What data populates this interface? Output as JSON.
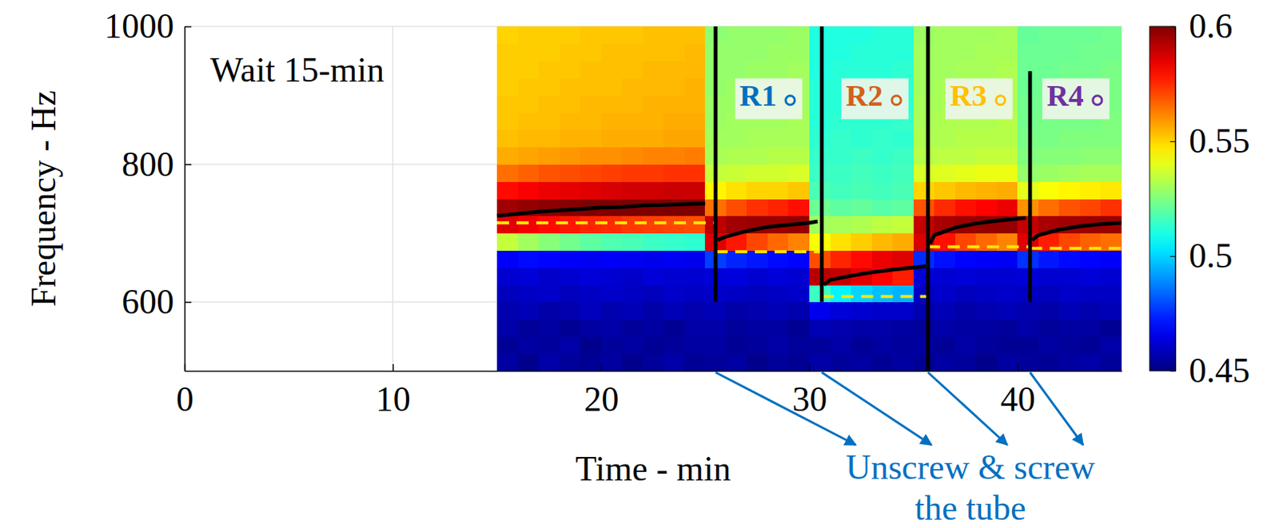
{
  "chart_data": {
    "type": "heatmap",
    "xlabel": "Time - min",
    "ylabel": "Frequency - Hz",
    "xlim": [
      0,
      45
    ],
    "ylim": [
      500,
      1000
    ],
    "xticks": [
      0,
      10,
      20,
      30,
      40
    ],
    "yticks": [
      600,
      800,
      1000
    ],
    "grid": true,
    "x": [
      15,
      16,
      17,
      18,
      19,
      20,
      21,
      22,
      23,
      24,
      25,
      25.5,
      25.6,
      26,
      27,
      28,
      29,
      30,
      30.4,
      30.6,
      30.7,
      31,
      32,
      33,
      34,
      35,
      35.6,
      35.7,
      35.8,
      36,
      37,
      38,
      39,
      40,
      40.4,
      40.6,
      40.7,
      41,
      42,
      43,
      44,
      45
    ],
    "series": [
      {
        "type": "line",
        "color": "#000000",
        "line_style": "solid",
        "values": [
          725,
          728,
          731,
          733,
          735,
          737,
          738,
          740,
          741,
          742,
          743,
          null,
          690,
          695,
          703,
          709,
          712,
          715,
          717,
          null,
          625,
          632,
          638,
          643,
          647,
          650,
          652,
          null,
          685,
          697,
          708,
          714,
          718,
          721,
          722,
          null,
          690,
          697,
          705,
          710,
          713,
          715
        ]
      }
    ],
    "cells": {
      "x": [
        15.5,
        16.5,
        17.5,
        18.5,
        19.5,
        20.5,
        21.5,
        22.5,
        23.5,
        24.5,
        25.5,
        26.5,
        27.5,
        28.5,
        29.5,
        30.5,
        31.5,
        32.5,
        33.5,
        34.5,
        35.5,
        36.5,
        37.5,
        38.5,
        39.5,
        40.5,
        41.5,
        42.5,
        43.5,
        44.5
      ],
      "y": [
        512.5,
        537.5,
        562.5,
        587.5,
        612.5,
        637.5,
        662.5,
        687.5,
        712.5,
        737.5,
        762.5,
        787.5,
        812.5,
        837.5,
        862.5,
        887.5,
        912.5,
        937.5,
        962.5,
        987.5
      ],
      "values": [
        [
          0.455,
          0.452,
          0.456,
          0.454,
          0.453,
          0.455,
          0.452,
          0.454,
          0.456,
          0.453,
          0.454,
          0.455,
          0.452,
          0.454,
          0.453,
          0.456,
          0.454,
          0.455,
          0.453,
          0.455,
          0.453,
          0.455,
          0.454,
          0.452,
          0.455,
          0.454,
          0.453,
          0.455,
          0.456,
          0.454
        ],
        [
          0.453,
          0.455,
          0.454,
          0.456,
          0.452,
          0.454,
          0.455,
          0.453,
          0.454,
          0.455,
          0.455,
          0.453,
          0.454,
          0.456,
          0.454,
          0.454,
          0.456,
          0.453,
          0.455,
          0.454,
          0.455,
          0.453,
          0.456,
          0.454,
          0.453,
          0.453,
          0.455,
          0.454,
          0.453,
          0.456
        ],
        [
          0.456,
          0.454,
          0.455,
          0.453,
          0.455,
          0.456,
          0.454,
          0.455,
          0.453,
          0.456,
          0.456,
          0.454,
          0.455,
          0.455,
          0.453,
          0.458,
          0.457,
          0.456,
          0.456,
          0.455,
          0.454,
          0.456,
          0.455,
          0.455,
          0.454,
          0.456,
          0.454,
          0.455,
          0.455,
          0.453
        ],
        [
          0.457,
          0.458,
          0.456,
          0.457,
          0.459,
          0.457,
          0.458,
          0.456,
          0.458,
          0.457,
          0.458,
          0.456,
          0.457,
          0.458,
          0.457,
          0.466,
          0.463,
          0.462,
          0.461,
          0.461,
          0.457,
          0.458,
          0.456,
          0.457,
          0.458,
          0.457,
          0.456,
          0.458,
          0.457,
          0.458
        ],
        [
          0.459,
          0.46,
          0.461,
          0.459,
          0.46,
          0.461,
          0.46,
          0.459,
          0.461,
          0.46,
          0.461,
          0.46,
          0.459,
          0.46,
          0.461,
          0.515,
          0.505,
          0.5,
          0.497,
          0.495,
          0.46,
          0.461,
          0.459,
          0.46,
          0.461,
          0.46,
          0.459,
          0.461,
          0.46,
          0.46
        ],
        [
          0.462,
          0.463,
          0.461,
          0.462,
          0.463,
          0.462,
          0.461,
          0.463,
          0.462,
          0.462,
          0.463,
          0.464,
          0.462,
          0.463,
          0.462,
          0.592,
          0.59,
          0.586,
          0.581,
          0.577,
          0.463,
          0.462,
          0.463,
          0.462,
          0.462,
          0.463,
          0.462,
          0.462,
          0.463,
          0.462
        ],
        [
          0.468,
          0.47,
          0.469,
          0.468,
          0.467,
          0.468,
          0.467,
          0.466,
          0.467,
          0.466,
          0.478,
          0.474,
          0.472,
          0.47,
          0.469,
          0.57,
          0.576,
          0.58,
          0.584,
          0.586,
          0.475,
          0.471,
          0.469,
          0.468,
          0.467,
          0.476,
          0.472,
          0.47,
          0.469,
          0.468
        ],
        [
          0.535,
          0.53,
          0.526,
          0.523,
          0.52,
          0.518,
          0.517,
          0.515,
          0.514,
          0.513,
          0.586,
          0.578,
          0.571,
          0.566,
          0.562,
          0.543,
          0.548,
          0.551,
          0.554,
          0.556,
          0.587,
          0.579,
          0.571,
          0.566,
          0.562,
          0.586,
          0.577,
          0.571,
          0.567,
          0.565
        ],
        [
          0.586,
          0.583,
          0.58,
          0.578,
          0.576,
          0.575,
          0.573,
          0.572,
          0.571,
          0.57,
          0.591,
          0.595,
          0.596,
          0.596,
          0.597,
          0.53,
          0.531,
          0.532,
          0.534,
          0.535,
          0.59,
          0.594,
          0.596,
          0.597,
          0.597,
          0.59,
          0.594,
          0.595,
          0.596,
          0.596
        ],
        [
          0.595,
          0.597,
          0.598,
          0.599,
          0.6,
          0.6,
          0.6,
          0.6,
          0.6,
          0.6,
          0.565,
          0.57,
          0.574,
          0.576,
          0.579,
          0.522,
          0.52,
          0.521,
          0.519,
          0.52,
          0.569,
          0.575,
          0.579,
          0.581,
          0.584,
          0.56,
          0.565,
          0.569,
          0.571,
          0.574
        ],
        [
          0.58,
          0.582,
          0.584,
          0.585,
          0.586,
          0.587,
          0.588,
          0.588,
          0.589,
          0.589,
          0.545,
          0.548,
          0.55,
          0.55,
          0.552,
          0.517,
          0.516,
          0.517,
          0.516,
          0.517,
          0.55,
          0.552,
          0.554,
          0.555,
          0.556,
          0.54,
          0.543,
          0.545,
          0.546,
          0.547
        ],
        [
          0.565,
          0.567,
          0.569,
          0.57,
          0.571,
          0.572,
          0.573,
          0.573,
          0.574,
          0.574,
          0.535,
          0.536,
          0.537,
          0.537,
          0.538,
          0.515,
          0.515,
          0.516,
          0.515,
          0.516,
          0.538,
          0.539,
          0.54,
          0.541,
          0.541,
          0.528,
          0.529,
          0.53,
          0.531,
          0.531
        ],
        [
          0.556,
          0.557,
          0.558,
          0.559,
          0.56,
          0.56,
          0.561,
          0.562,
          0.562,
          0.563,
          0.531,
          0.532,
          0.532,
          0.533,
          0.533,
          0.514,
          0.514,
          0.515,
          0.514,
          0.515,
          0.533,
          0.534,
          0.534,
          0.535,
          0.535,
          0.525,
          0.526,
          0.526,
          0.527,
          0.527
        ],
        [
          0.553,
          0.554,
          0.554,
          0.555,
          0.555,
          0.556,
          0.556,
          0.556,
          0.557,
          0.557,
          0.53,
          0.53,
          0.531,
          0.531,
          0.531,
          0.513,
          0.514,
          0.513,
          0.514,
          0.513,
          0.532,
          0.532,
          0.533,
          0.533,
          0.533,
          0.524,
          0.524,
          0.525,
          0.525,
          0.525
        ],
        [
          0.552,
          0.553,
          0.553,
          0.554,
          0.554,
          0.555,
          0.555,
          0.555,
          0.556,
          0.556,
          0.529,
          0.53,
          0.53,
          0.53,
          0.531,
          0.512,
          0.513,
          0.513,
          0.513,
          0.514,
          0.531,
          0.532,
          0.532,
          0.532,
          0.533,
          0.523,
          0.524,
          0.524,
          0.524,
          0.525
        ],
        [
          0.552,
          0.552,
          0.553,
          0.553,
          0.554,
          0.554,
          0.554,
          0.555,
          0.555,
          0.555,
          0.529,
          0.529,
          0.53,
          0.53,
          0.53,
          0.512,
          0.512,
          0.513,
          0.513,
          0.513,
          0.531,
          0.531,
          0.532,
          0.532,
          0.532,
          0.523,
          0.523,
          0.524,
          0.524,
          0.524
        ],
        [
          0.551,
          0.552,
          0.552,
          0.553,
          0.553,
          0.553,
          0.554,
          0.554,
          0.554,
          0.555,
          0.528,
          0.529,
          0.529,
          0.53,
          0.53,
          0.512,
          0.512,
          0.512,
          0.513,
          0.513,
          0.53,
          0.531,
          0.531,
          0.532,
          0.532,
          0.522,
          0.523,
          0.523,
          0.524,
          0.524
        ],
        [
          0.551,
          0.551,
          0.552,
          0.552,
          0.553,
          0.553,
          0.553,
          0.554,
          0.554,
          0.554,
          0.528,
          0.528,
          0.529,
          0.529,
          0.53,
          0.511,
          0.512,
          0.512,
          0.512,
          0.513,
          0.53,
          0.53,
          0.531,
          0.531,
          0.532,
          0.522,
          0.522,
          0.523,
          0.523,
          0.524
        ],
        [
          0.551,
          0.551,
          0.551,
          0.552,
          0.552,
          0.553,
          0.553,
          0.553,
          0.553,
          0.554,
          0.528,
          0.528,
          0.528,
          0.529,
          0.529,
          0.511,
          0.511,
          0.512,
          0.512,
          0.512,
          0.53,
          0.53,
          0.53,
          0.531,
          0.531,
          0.522,
          0.522,
          0.522,
          0.523,
          0.523
        ],
        [
          0.55,
          0.551,
          0.551,
          0.551,
          0.552,
          0.552,
          0.552,
          0.553,
          0.553,
          0.553,
          0.527,
          0.528,
          0.528,
          0.528,
          0.529,
          0.511,
          0.511,
          0.511,
          0.512,
          0.512,
          0.529,
          0.53,
          0.53,
          0.53,
          0.531,
          0.521,
          0.522,
          0.522,
          0.522,
          0.523
        ]
      ]
    },
    "colorbar": {
      "range": [
        0.45,
        0.6
      ],
      "ticks": [
        0.45,
        0.5,
        0.55,
        0.6
      ]
    },
    "baselines": {
      "x_start": [
        15,
        25.5,
        30.6,
        35.7,
        40.6
      ],
      "x_end": [
        25.5,
        30.6,
        35.7,
        40.6,
        45
      ],
      "values": [
        715,
        673,
        608,
        680,
        678
      ],
      "color": "#ffe600",
      "line_style": "dashed"
    },
    "transients": {
      "x": [
        25.5,
        30.6,
        35.7,
        40.6
      ],
      "from": [
        600,
        600,
        500,
        600
      ],
      "to": [
        1000,
        1000,
        1000,
        935
      ]
    },
    "regions": {
      "names": [
        "R1",
        "R2",
        "R3",
        "R4"
      ],
      "colors": [
        "#0070c0",
        "#d2601a",
        "#ffc000",
        "#7030a0"
      ]
    },
    "annotations": [
      {
        "text": "Wait 15-min"
      },
      {
        "text": "Unscrew & screw the tube"
      }
    ]
  }
}
